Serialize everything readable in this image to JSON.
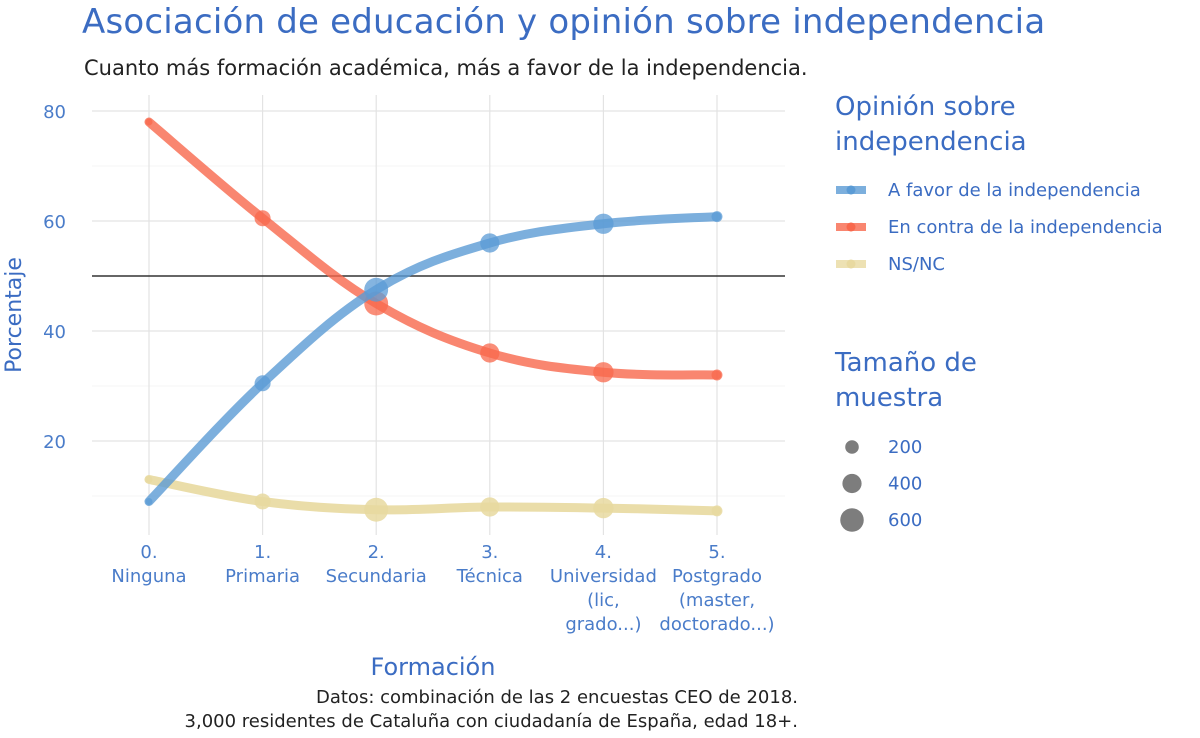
{
  "chart_data": {
    "type": "line",
    "title": "Asociación de educación y opinión sobre independencia",
    "subtitle": "Cuanto más formación académica, más a favor de la independencia.",
    "xlabel": "Formación",
    "ylabel": "Porcentaje",
    "categories": [
      [
        "0.",
        "Ninguna"
      ],
      [
        "1.",
        "Primaria"
      ],
      [
        "2.",
        "Secundaria"
      ],
      [
        "3.",
        "Técnica"
      ],
      [
        "4.",
        "Universidad",
        "(lic,",
        "grado...)"
      ],
      [
        "5.",
        "Postgrado",
        "(master,",
        "doctorado...)"
      ]
    ],
    "yticks": [
      20,
      40,
      60,
      80
    ],
    "ylim": [
      0,
      83
    ],
    "reference_line": 50,
    "grid": true,
    "legend_position": "right",
    "series": [
      {
        "name": "A favor de la independencia",
        "color": "#5b9bd5",
        "values": [
          9,
          30.5,
          47.5,
          56,
          59.5,
          60.8
        ]
      },
      {
        "name": "En contra de la independencia",
        "color": "#f8684c",
        "values": [
          78,
          60.5,
          45,
          36,
          32.5,
          32
        ]
      },
      {
        "name": "NS/NC",
        "color": "#e8d9a0",
        "values": [
          13,
          9,
          7.5,
          8,
          7.8,
          7.3
        ]
      }
    ],
    "sample_sizes": [
      30,
      280,
      620,
      400,
      450,
      130
    ],
    "legend_title": [
      "Opinión sobre",
      "independencia"
    ],
    "size_legend_title": [
      "Tamaño de",
      "muestra"
    ],
    "size_legend": [
      200,
      400,
      600
    ],
    "caption": [
      "Datos: combinación de las 2 encuestas CEO de 2018.",
      "3,000 residentes de Cataluña con ciudadanía de España, edad 18+."
    ]
  }
}
